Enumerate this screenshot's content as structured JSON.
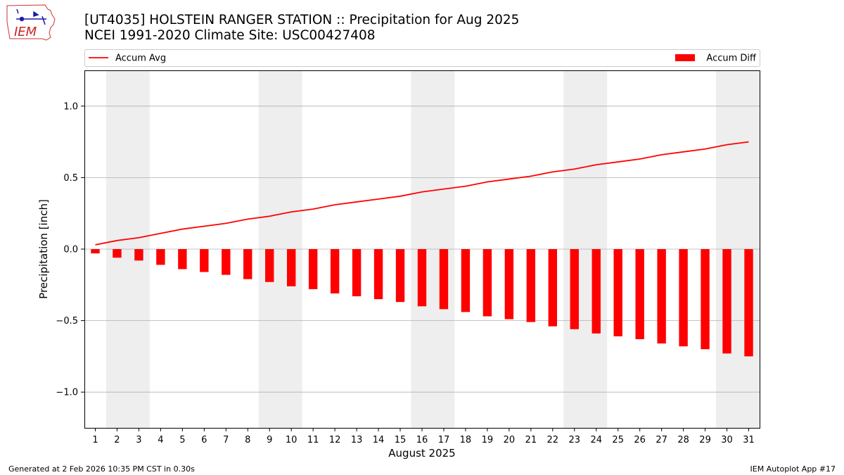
{
  "header": {
    "title": "[UT4035] HOLSTEIN RANGER STATION :: Precipitation for Aug 2025",
    "subtitle": "NCEI 1991-2020 Climate Site: USC00427408"
  },
  "logo": {
    "text": "IEM",
    "icon": "iowa-state-outline-logo"
  },
  "footer": {
    "generated": "Generated at 2 Feb 2026 10:35 PM CST in 0.30s",
    "app": "IEM Autoplot App #17"
  },
  "colors": {
    "series": "#ff0000",
    "weekend_band": "#eeeeee",
    "grid": "#b0b0b0"
  },
  "chart_data": {
    "type": "bar",
    "xlabel": "August 2025",
    "ylabel": "Precipitation [inch]",
    "ylim": [
      -1.25,
      1.25
    ],
    "yticks": [
      -1.0,
      -0.5,
      0.0,
      0.5,
      1.0
    ],
    "ytick_labels": [
      "−1.0",
      "−0.5",
      "0.0",
      "0.5",
      "1.0"
    ],
    "categories": [
      "1",
      "2",
      "3",
      "4",
      "5",
      "6",
      "7",
      "8",
      "9",
      "10",
      "11",
      "12",
      "13",
      "14",
      "15",
      "16",
      "17",
      "18",
      "19",
      "20",
      "21",
      "22",
      "23",
      "24",
      "25",
      "26",
      "27",
      "28",
      "29",
      "30",
      "31"
    ],
    "grid": "horizontal",
    "legend": {
      "placement": "top",
      "entries": [
        "Accum Avg",
        "Accum Diff"
      ]
    },
    "weekend_bands": [
      [
        2,
        3
      ],
      [
        9,
        10
      ],
      [
        16,
        17
      ],
      [
        23,
        24
      ],
      [
        30,
        31
      ]
    ],
    "series": [
      {
        "name": "Accum Avg",
        "type": "line",
        "values": [
          0.03,
          0.06,
          0.08,
          0.11,
          0.14,
          0.16,
          0.18,
          0.21,
          0.23,
          0.26,
          0.28,
          0.31,
          0.33,
          0.35,
          0.37,
          0.4,
          0.42,
          0.44,
          0.47,
          0.49,
          0.51,
          0.54,
          0.56,
          0.59,
          0.61,
          0.63,
          0.66,
          0.68,
          0.7,
          0.73,
          0.75
        ]
      },
      {
        "name": "Accum Diff",
        "type": "bar",
        "values": [
          -0.03,
          -0.06,
          -0.08,
          -0.11,
          -0.14,
          -0.16,
          -0.18,
          -0.21,
          -0.23,
          -0.26,
          -0.28,
          -0.31,
          -0.33,
          -0.35,
          -0.37,
          -0.4,
          -0.42,
          -0.44,
          -0.47,
          -0.49,
          -0.51,
          -0.54,
          -0.56,
          -0.59,
          -0.61,
          -0.63,
          -0.66,
          -0.68,
          -0.7,
          -0.73,
          -0.75
        ]
      }
    ]
  }
}
